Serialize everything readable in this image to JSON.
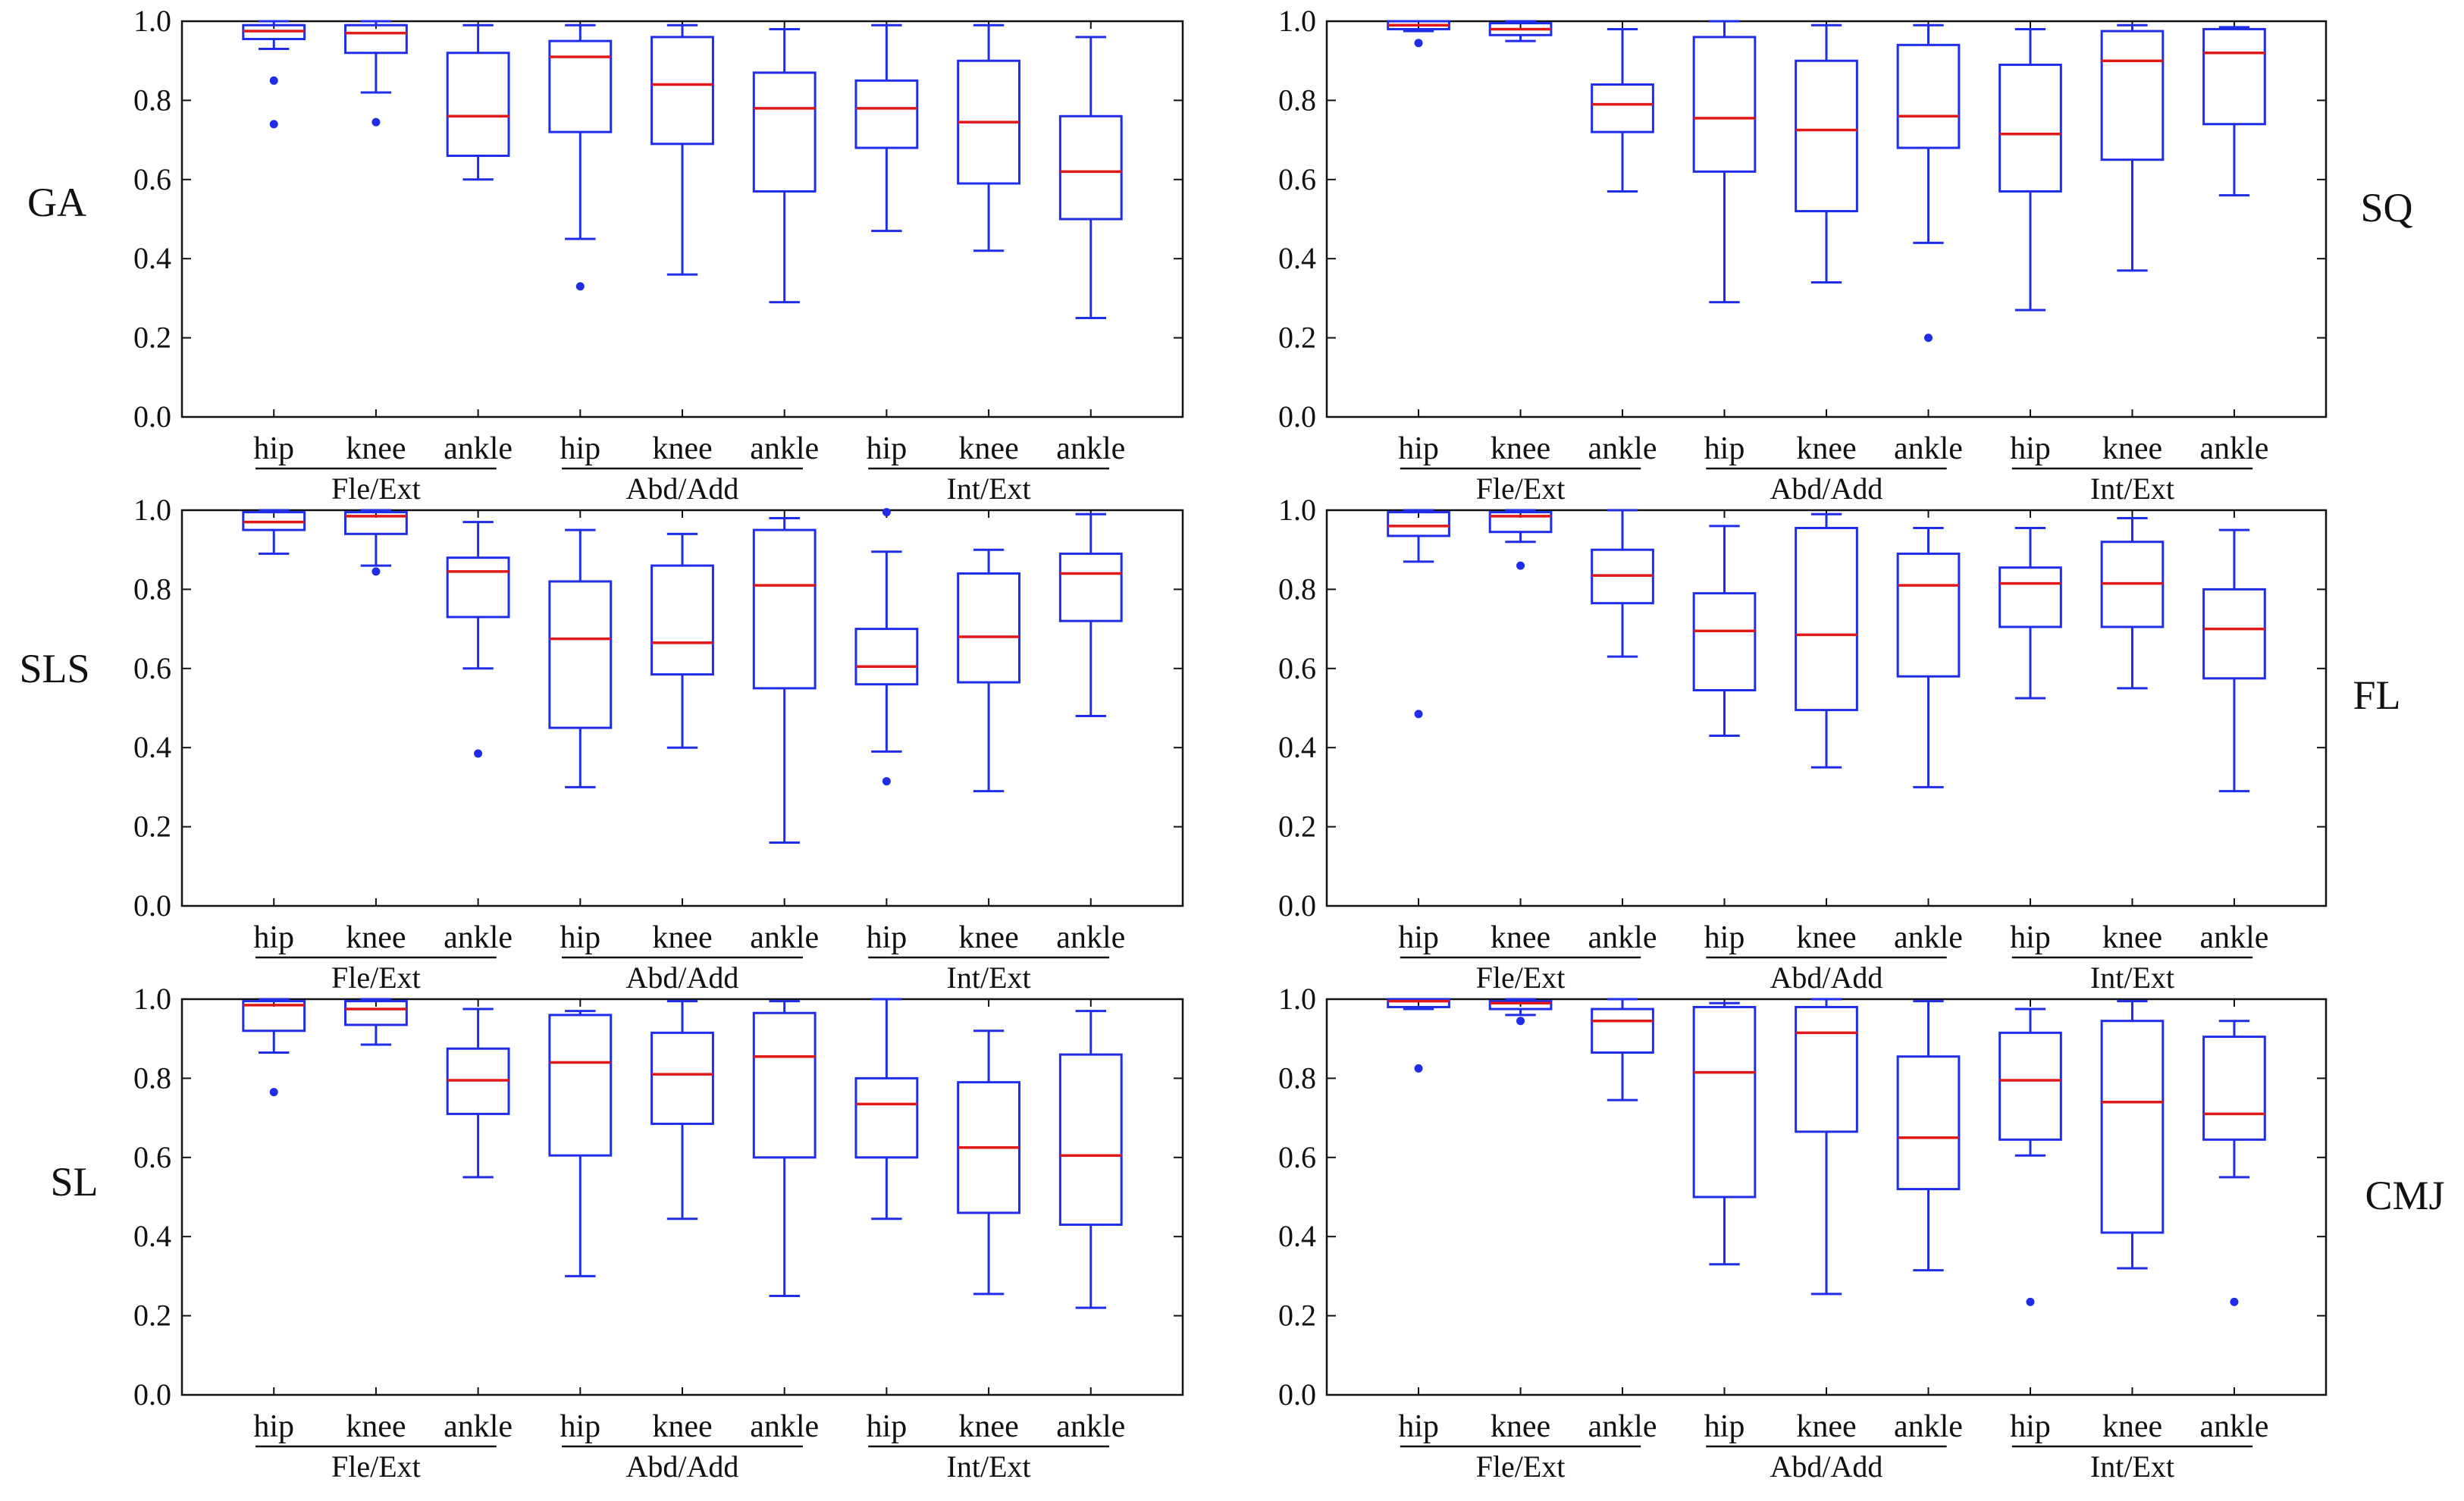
{
  "colors": {
    "box": "#1f2ee6",
    "median": "#e01818",
    "frame": "#111111",
    "text": "#111111"
  },
  "chart_data": [
    {
      "type": "boxplot",
      "title": "GA",
      "ylim": [
        0,
        1.0
      ],
      "yticks": [
        "0.0",
        "0.2",
        "0.4",
        "0.6",
        "0.8",
        "1.0"
      ],
      "groups": [
        "Fle/Ext",
        "Abd/Add",
        "Int/Ext"
      ],
      "joints": [
        "hip",
        "knee",
        "ankle"
      ],
      "boxes": [
        {
          "group": "Fle/Ext",
          "joint": "hip",
          "lower_whisker": 0.93,
          "q1": 0.955,
          "median": 0.975,
          "q3": 0.99,
          "upper_whisker": 1.0,
          "outliers": [
            0.85,
            0.74
          ]
        },
        {
          "group": "Fle/Ext",
          "joint": "knee",
          "lower_whisker": 0.82,
          "q1": 0.92,
          "median": 0.97,
          "q3": 0.99,
          "upper_whisker": 1.0,
          "outliers": [
            0.745
          ]
        },
        {
          "group": "Fle/Ext",
          "joint": "ankle",
          "lower_whisker": 0.6,
          "q1": 0.66,
          "median": 0.76,
          "q3": 0.92,
          "upper_whisker": 0.99,
          "outliers": []
        },
        {
          "group": "Abd/Add",
          "joint": "hip",
          "lower_whisker": 0.45,
          "q1": 0.72,
          "median": 0.91,
          "q3": 0.95,
          "upper_whisker": 0.99,
          "outliers": [
            0.33
          ]
        },
        {
          "group": "Abd/Add",
          "joint": "knee",
          "lower_whisker": 0.36,
          "q1": 0.69,
          "median": 0.84,
          "q3": 0.96,
          "upper_whisker": 0.99,
          "outliers": []
        },
        {
          "group": "Abd/Add",
          "joint": "ankle",
          "lower_whisker": 0.29,
          "q1": 0.57,
          "median": 0.78,
          "q3": 0.87,
          "upper_whisker": 0.98,
          "outliers": []
        },
        {
          "group": "Int/Ext",
          "joint": "hip",
          "lower_whisker": 0.47,
          "q1": 0.68,
          "median": 0.78,
          "q3": 0.85,
          "upper_whisker": 0.99,
          "outliers": []
        },
        {
          "group": "Int/Ext",
          "joint": "knee",
          "lower_whisker": 0.42,
          "q1": 0.59,
          "median": 0.745,
          "q3": 0.9,
          "upper_whisker": 0.99,
          "outliers": []
        },
        {
          "group": "Int/Ext",
          "joint": "ankle",
          "lower_whisker": 0.25,
          "q1": 0.5,
          "median": 0.62,
          "q3": 0.76,
          "upper_whisker": 0.96,
          "outliers": []
        }
      ]
    },
    {
      "type": "boxplot",
      "title": "SQ",
      "ylim": [
        0,
        1.0
      ],
      "yticks": [
        "0.0",
        "0.2",
        "0.4",
        "0.6",
        "0.8",
        "1.0"
      ],
      "groups": [
        "Fle/Ext",
        "Abd/Add",
        "Int/Ext"
      ],
      "joints": [
        "hip",
        "knee",
        "ankle"
      ],
      "boxes": [
        {
          "group": "Fle/Ext",
          "joint": "hip",
          "lower_whisker": 0.975,
          "q1": 0.98,
          "median": 0.99,
          "q3": 1.0,
          "upper_whisker": 1.0,
          "outliers": [
            0.945
          ]
        },
        {
          "group": "Fle/Ext",
          "joint": "knee",
          "lower_whisker": 0.95,
          "q1": 0.965,
          "median": 0.98,
          "q3": 0.995,
          "upper_whisker": 1.0,
          "outliers": []
        },
        {
          "group": "Fle/Ext",
          "joint": "ankle",
          "lower_whisker": 0.57,
          "q1": 0.72,
          "median": 0.79,
          "q3": 0.84,
          "upper_whisker": 0.98,
          "outliers": []
        },
        {
          "group": "Abd/Add",
          "joint": "hip",
          "lower_whisker": 0.29,
          "q1": 0.62,
          "median": 0.755,
          "q3": 0.96,
          "upper_whisker": 1.0,
          "outliers": []
        },
        {
          "group": "Abd/Add",
          "joint": "knee",
          "lower_whisker": 0.34,
          "q1": 0.52,
          "median": 0.725,
          "q3": 0.9,
          "upper_whisker": 0.99,
          "outliers": []
        },
        {
          "group": "Abd/Add",
          "joint": "ankle",
          "lower_whisker": 0.44,
          "q1": 0.68,
          "median": 0.76,
          "q3": 0.94,
          "upper_whisker": 0.99,
          "outliers": [
            0.2
          ]
        },
        {
          "group": "Int/Ext",
          "joint": "hip",
          "lower_whisker": 0.27,
          "q1": 0.57,
          "median": 0.715,
          "q3": 0.89,
          "upper_whisker": 0.98,
          "outliers": []
        },
        {
          "group": "Int/Ext",
          "joint": "knee",
          "lower_whisker": 0.37,
          "q1": 0.65,
          "median": 0.9,
          "q3": 0.975,
          "upper_whisker": 0.99,
          "outliers": []
        },
        {
          "group": "Int/Ext",
          "joint": "ankle",
          "lower_whisker": 0.56,
          "q1": 0.74,
          "median": 0.92,
          "q3": 0.98,
          "upper_whisker": 0.985,
          "outliers": []
        }
      ]
    },
    {
      "type": "boxplot",
      "title": "SLS",
      "ylim": [
        0,
        1.0
      ],
      "yticks": [
        "0.0",
        "0.2",
        "0.4",
        "0.6",
        "0.8",
        "1.0"
      ],
      "groups": [
        "Fle/Ext",
        "Abd/Add",
        "Int/Ext"
      ],
      "joints": [
        "hip",
        "knee",
        "ankle"
      ],
      "boxes": [
        {
          "group": "Fle/Ext",
          "joint": "hip",
          "lower_whisker": 0.89,
          "q1": 0.95,
          "median": 0.97,
          "q3": 0.995,
          "upper_whisker": 1.0,
          "outliers": []
        },
        {
          "group": "Fle/Ext",
          "joint": "knee",
          "lower_whisker": 0.86,
          "q1": 0.94,
          "median": 0.985,
          "q3": 0.995,
          "upper_whisker": 1.0,
          "outliers": [
            0.845
          ]
        },
        {
          "group": "Fle/Ext",
          "joint": "ankle",
          "lower_whisker": 0.6,
          "q1": 0.73,
          "median": 0.845,
          "q3": 0.88,
          "upper_whisker": 0.97,
          "outliers": [
            0.385
          ]
        },
        {
          "group": "Abd/Add",
          "joint": "hip",
          "lower_whisker": 0.3,
          "q1": 0.45,
          "median": 0.675,
          "q3": 0.82,
          "upper_whisker": 0.95,
          "outliers": []
        },
        {
          "group": "Abd/Add",
          "joint": "knee",
          "lower_whisker": 0.4,
          "q1": 0.585,
          "median": 0.665,
          "q3": 0.86,
          "upper_whisker": 0.94,
          "outliers": []
        },
        {
          "group": "Abd/Add",
          "joint": "ankle",
          "lower_whisker": 0.16,
          "q1": 0.55,
          "median": 0.81,
          "q3": 0.95,
          "upper_whisker": 0.98,
          "outliers": []
        },
        {
          "group": "Int/Ext",
          "joint": "hip",
          "lower_whisker": 0.39,
          "q1": 0.56,
          "median": 0.605,
          "q3": 0.7,
          "upper_whisker": 0.895,
          "outliers": [
            0.995,
            0.315
          ]
        },
        {
          "group": "Int/Ext",
          "joint": "knee",
          "lower_whisker": 0.29,
          "q1": 0.565,
          "median": 0.68,
          "q3": 0.84,
          "upper_whisker": 0.9,
          "outliers": []
        },
        {
          "group": "Int/Ext",
          "joint": "ankle",
          "lower_whisker": 0.48,
          "q1": 0.72,
          "median": 0.84,
          "q3": 0.89,
          "upper_whisker": 0.99,
          "outliers": []
        }
      ]
    },
    {
      "type": "boxplot",
      "title": "FL",
      "ylim": [
        0,
        1.0
      ],
      "yticks": [
        "0.0",
        "0.2",
        "0.4",
        "0.6",
        "0.8",
        "1.0"
      ],
      "groups": [
        "Fle/Ext",
        "Abd/Add",
        "Int/Ext"
      ],
      "joints": [
        "hip",
        "knee",
        "ankle"
      ],
      "boxes": [
        {
          "group": "Fle/Ext",
          "joint": "hip",
          "lower_whisker": 0.87,
          "q1": 0.935,
          "median": 0.96,
          "q3": 0.995,
          "upper_whisker": 1.0,
          "outliers": [
            0.485
          ]
        },
        {
          "group": "Fle/Ext",
          "joint": "knee",
          "lower_whisker": 0.92,
          "q1": 0.945,
          "median": 0.985,
          "q3": 0.995,
          "upper_whisker": 1.0,
          "outliers": [
            0.86
          ]
        },
        {
          "group": "Fle/Ext",
          "joint": "ankle",
          "lower_whisker": 0.63,
          "q1": 0.765,
          "median": 0.835,
          "q3": 0.9,
          "upper_whisker": 1.0,
          "outliers": []
        },
        {
          "group": "Abd/Add",
          "joint": "hip",
          "lower_whisker": 0.43,
          "q1": 0.545,
          "median": 0.695,
          "q3": 0.79,
          "upper_whisker": 0.96,
          "outliers": []
        },
        {
          "group": "Abd/Add",
          "joint": "knee",
          "lower_whisker": 0.35,
          "q1": 0.495,
          "median": 0.685,
          "q3": 0.955,
          "upper_whisker": 0.99,
          "outliers": []
        },
        {
          "group": "Abd/Add",
          "joint": "ankle",
          "lower_whisker": 0.3,
          "q1": 0.58,
          "median": 0.81,
          "q3": 0.89,
          "upper_whisker": 0.955,
          "outliers": []
        },
        {
          "group": "Int/Ext",
          "joint": "hip",
          "lower_whisker": 0.525,
          "q1": 0.705,
          "median": 0.815,
          "q3": 0.855,
          "upper_whisker": 0.955,
          "outliers": []
        },
        {
          "group": "Int/Ext",
          "joint": "knee",
          "lower_whisker": 0.55,
          "q1": 0.705,
          "median": 0.815,
          "q3": 0.92,
          "upper_whisker": 0.98,
          "outliers": []
        },
        {
          "group": "Int/Ext",
          "joint": "ankle",
          "lower_whisker": 0.29,
          "q1": 0.575,
          "median": 0.7,
          "q3": 0.8,
          "upper_whisker": 0.95,
          "outliers": []
        }
      ]
    },
    {
      "type": "boxplot",
      "title": "SL",
      "ylim": [
        0,
        1.0
      ],
      "yticks": [
        "0.0",
        "0.2",
        "0.4",
        "0.6",
        "0.8",
        "1.0"
      ],
      "groups": [
        "Fle/Ext",
        "Abd/Add",
        "Int/Ext"
      ],
      "joints": [
        "hip",
        "knee",
        "ankle"
      ],
      "boxes": [
        {
          "group": "Fle/Ext",
          "joint": "hip",
          "lower_whisker": 0.865,
          "q1": 0.92,
          "median": 0.985,
          "q3": 0.995,
          "upper_whisker": 1.0,
          "outliers": [
            0.765
          ]
        },
        {
          "group": "Fle/Ext",
          "joint": "knee",
          "lower_whisker": 0.885,
          "q1": 0.935,
          "median": 0.975,
          "q3": 0.995,
          "upper_whisker": 1.0,
          "outliers": []
        },
        {
          "group": "Fle/Ext",
          "joint": "ankle",
          "lower_whisker": 0.55,
          "q1": 0.71,
          "median": 0.795,
          "q3": 0.875,
          "upper_whisker": 0.975,
          "outliers": []
        },
        {
          "group": "Abd/Add",
          "joint": "hip",
          "lower_whisker": 0.3,
          "q1": 0.605,
          "median": 0.84,
          "q3": 0.96,
          "upper_whisker": 0.97,
          "outliers": []
        },
        {
          "group": "Abd/Add",
          "joint": "knee",
          "lower_whisker": 0.445,
          "q1": 0.685,
          "median": 0.81,
          "q3": 0.915,
          "upper_whisker": 0.995,
          "outliers": []
        },
        {
          "group": "Abd/Add",
          "joint": "ankle",
          "lower_whisker": 0.25,
          "q1": 0.6,
          "median": 0.855,
          "q3": 0.965,
          "upper_whisker": 0.995,
          "outliers": []
        },
        {
          "group": "Int/Ext",
          "joint": "hip",
          "lower_whisker": 0.445,
          "q1": 0.6,
          "median": 0.735,
          "q3": 0.8,
          "upper_whisker": 1.0,
          "outliers": []
        },
        {
          "group": "Int/Ext",
          "joint": "knee",
          "lower_whisker": 0.255,
          "q1": 0.46,
          "median": 0.625,
          "q3": 0.79,
          "upper_whisker": 0.92,
          "outliers": []
        },
        {
          "group": "Int/Ext",
          "joint": "ankle",
          "lower_whisker": 0.22,
          "q1": 0.43,
          "median": 0.605,
          "q3": 0.86,
          "upper_whisker": 0.97,
          "outliers": []
        }
      ]
    },
    {
      "type": "boxplot",
      "title": "CMJ",
      "ylim": [
        0,
        1.0
      ],
      "yticks": [
        "0.0",
        "0.2",
        "0.4",
        "0.6",
        "0.8",
        "1.0"
      ],
      "groups": [
        "Fle/Ext",
        "Abd/Add",
        "Int/Ext"
      ],
      "joints": [
        "hip",
        "knee",
        "ankle"
      ],
      "boxes": [
        {
          "group": "Fle/Ext",
          "joint": "hip",
          "lower_whisker": 0.975,
          "q1": 0.98,
          "median": 0.995,
          "q3": 1.0,
          "upper_whisker": 1.0,
          "outliers": [
            0.825
          ]
        },
        {
          "group": "Fle/Ext",
          "joint": "knee",
          "lower_whisker": 0.96,
          "q1": 0.975,
          "median": 0.99,
          "q3": 0.995,
          "upper_whisker": 1.0,
          "outliers": [
            0.945
          ]
        },
        {
          "group": "Fle/Ext",
          "joint": "ankle",
          "lower_whisker": 0.745,
          "q1": 0.865,
          "median": 0.945,
          "q3": 0.975,
          "upper_whisker": 1.0,
          "outliers": []
        },
        {
          "group": "Abd/Add",
          "joint": "hip",
          "lower_whisker": 0.33,
          "q1": 0.5,
          "median": 0.815,
          "q3": 0.98,
          "upper_whisker": 0.99,
          "outliers": []
        },
        {
          "group": "Abd/Add",
          "joint": "knee",
          "lower_whisker": 0.255,
          "q1": 0.665,
          "median": 0.915,
          "q3": 0.98,
          "upper_whisker": 1.0,
          "outliers": []
        },
        {
          "group": "Abd/Add",
          "joint": "ankle",
          "lower_whisker": 0.315,
          "q1": 0.52,
          "median": 0.65,
          "q3": 0.855,
          "upper_whisker": 0.995,
          "outliers": []
        },
        {
          "group": "Int/Ext",
          "joint": "hip",
          "lower_whisker": 0.605,
          "q1": 0.645,
          "median": 0.795,
          "q3": 0.915,
          "upper_whisker": 0.975,
          "outliers": [
            0.235
          ]
        },
        {
          "group": "Int/Ext",
          "joint": "knee",
          "lower_whisker": 0.32,
          "q1": 0.41,
          "median": 0.74,
          "q3": 0.945,
          "upper_whisker": 0.995,
          "outliers": []
        },
        {
          "group": "Int/Ext",
          "joint": "ankle",
          "lower_whisker": 0.55,
          "q1": 0.645,
          "median": 0.71,
          "q3": 0.905,
          "upper_whisker": 0.945,
          "outliers": [
            0.235
          ]
        }
      ]
    }
  ]
}
